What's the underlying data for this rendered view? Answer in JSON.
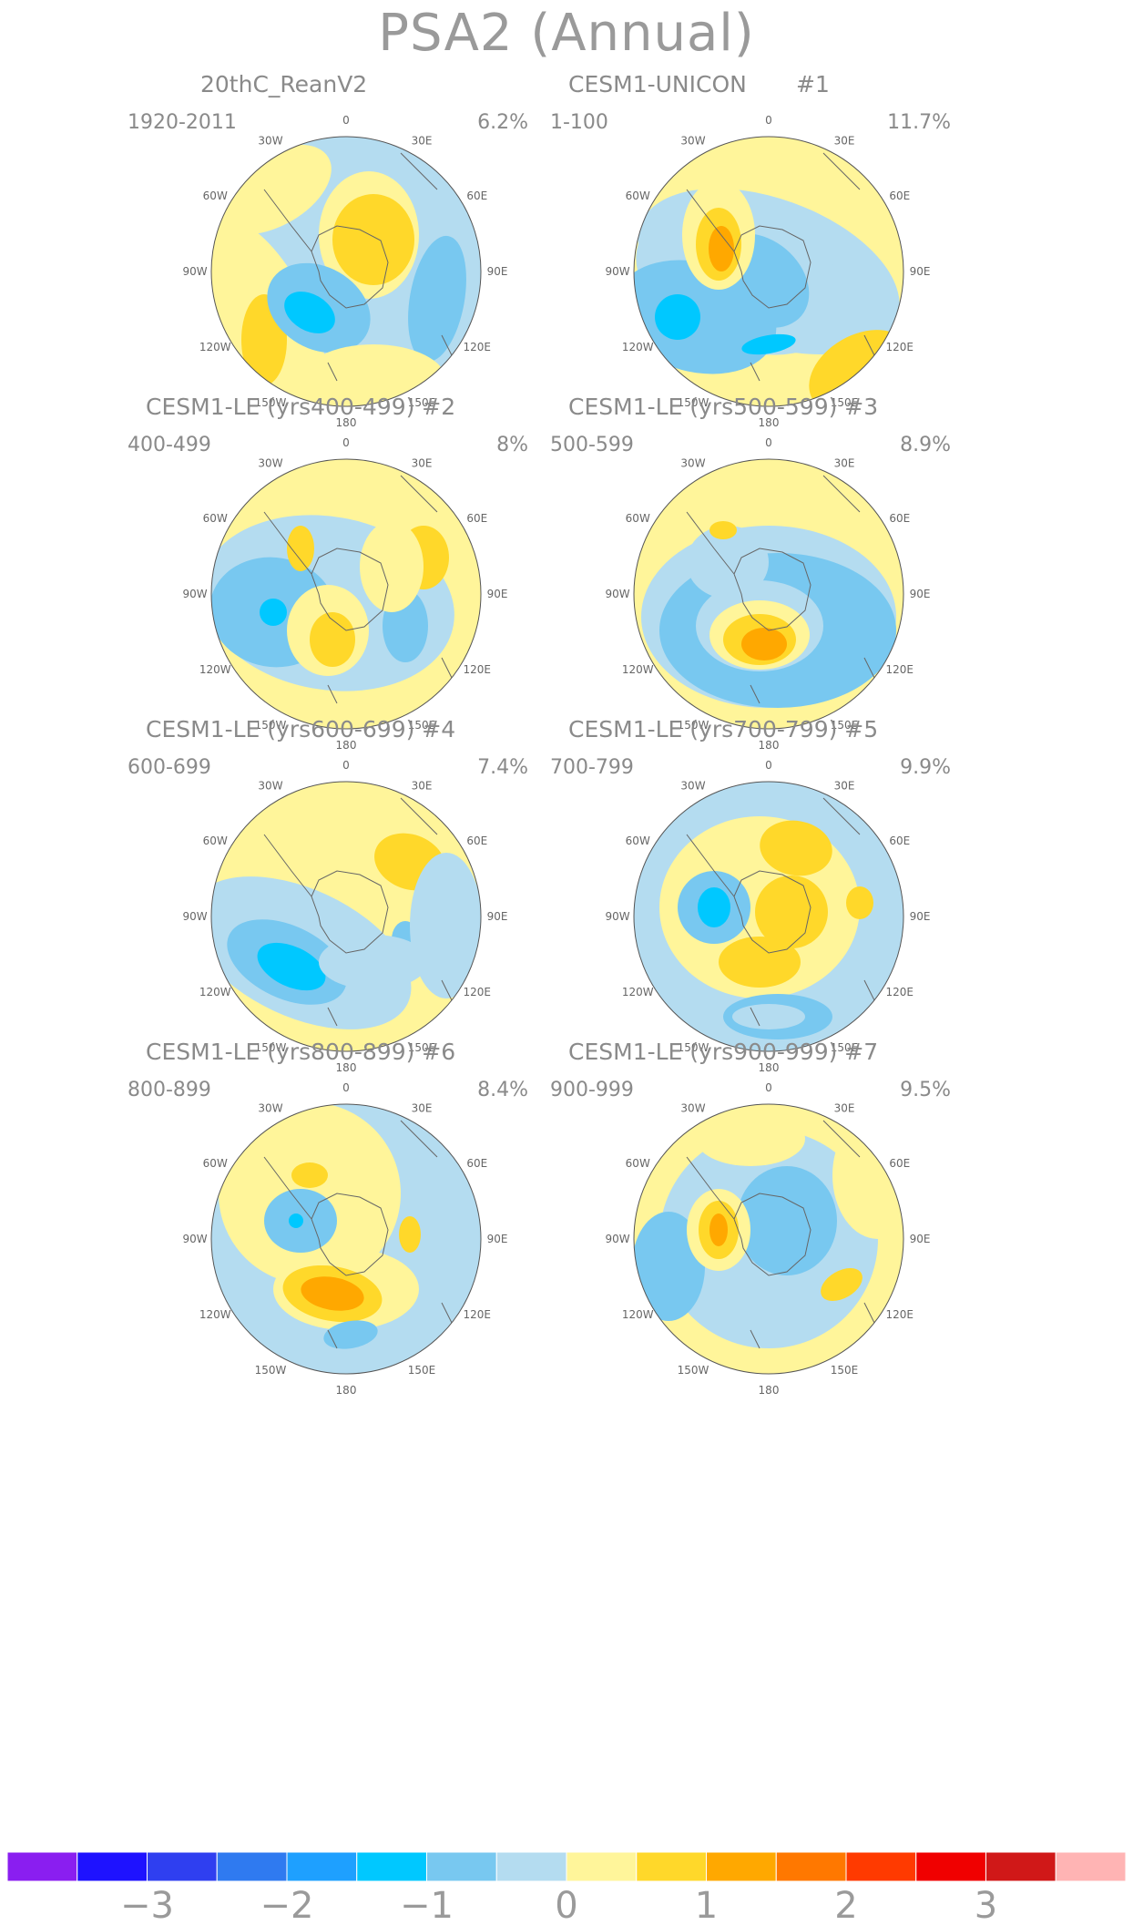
{
  "title": "PSA2 (Annual)",
  "panels": [
    {
      "title": "20thC_ReanV2",
      "num": "",
      "years": "1920-2011",
      "pct": "6.2%"
    },
    {
      "title": "CESM1-UNICON",
      "num": "#1",
      "years": "1-100",
      "pct": "11.7%"
    },
    {
      "title": "CESM1-LE (yrs400-499) #2",
      "num": "",
      "years": "400-499",
      "pct": "8%"
    },
    {
      "title": "CESM1-LE (yrs500-599) #3",
      "num": "",
      "years": "500-599",
      "pct": "8.9%"
    },
    {
      "title": "CESM1-LE (yrs600-699) #4",
      "num": "",
      "years": "600-699",
      "pct": "7.4%"
    },
    {
      "title": "CESM1-LE (yrs700-799) #5",
      "num": "",
      "years": "700-799",
      "pct": "9.9%"
    },
    {
      "title": "CESM1-LE (yrs800-899) #6",
      "num": "",
      "years": "800-899",
      "pct": "8.4%"
    },
    {
      "title": "CESM1-LE (yrs900-999) #7",
      "num": "",
      "years": "900-999",
      "pct": "9.5%"
    }
  ],
  "longitude_labels": [
    "0",
    "30E",
    "60E",
    "90E",
    "120E",
    "150E",
    "180",
    "150W",
    "120W",
    "90W",
    "60W",
    "30W"
  ],
  "chart_data": {
    "type": "heatmap",
    "projection": "south polar stereographic",
    "colorbar": {
      "colors": [
        "#8a1ef0",
        "#1e12ff",
        "#2f3ff0",
        "#2f7af0",
        "#1ea0ff",
        "#00c8ff",
        "#78c8f0",
        "#b4dcf0",
        "#fff59a",
        "#ffd82a",
        "#ffa800",
        "#ff7800",
        "#ff3a00",
        "#f00000",
        "#d01818",
        "#ffb4b4"
      ],
      "tick_labels": [
        "-3",
        "-2",
        "-1",
        "0",
        "1",
        "2",
        "3"
      ]
    }
  }
}
